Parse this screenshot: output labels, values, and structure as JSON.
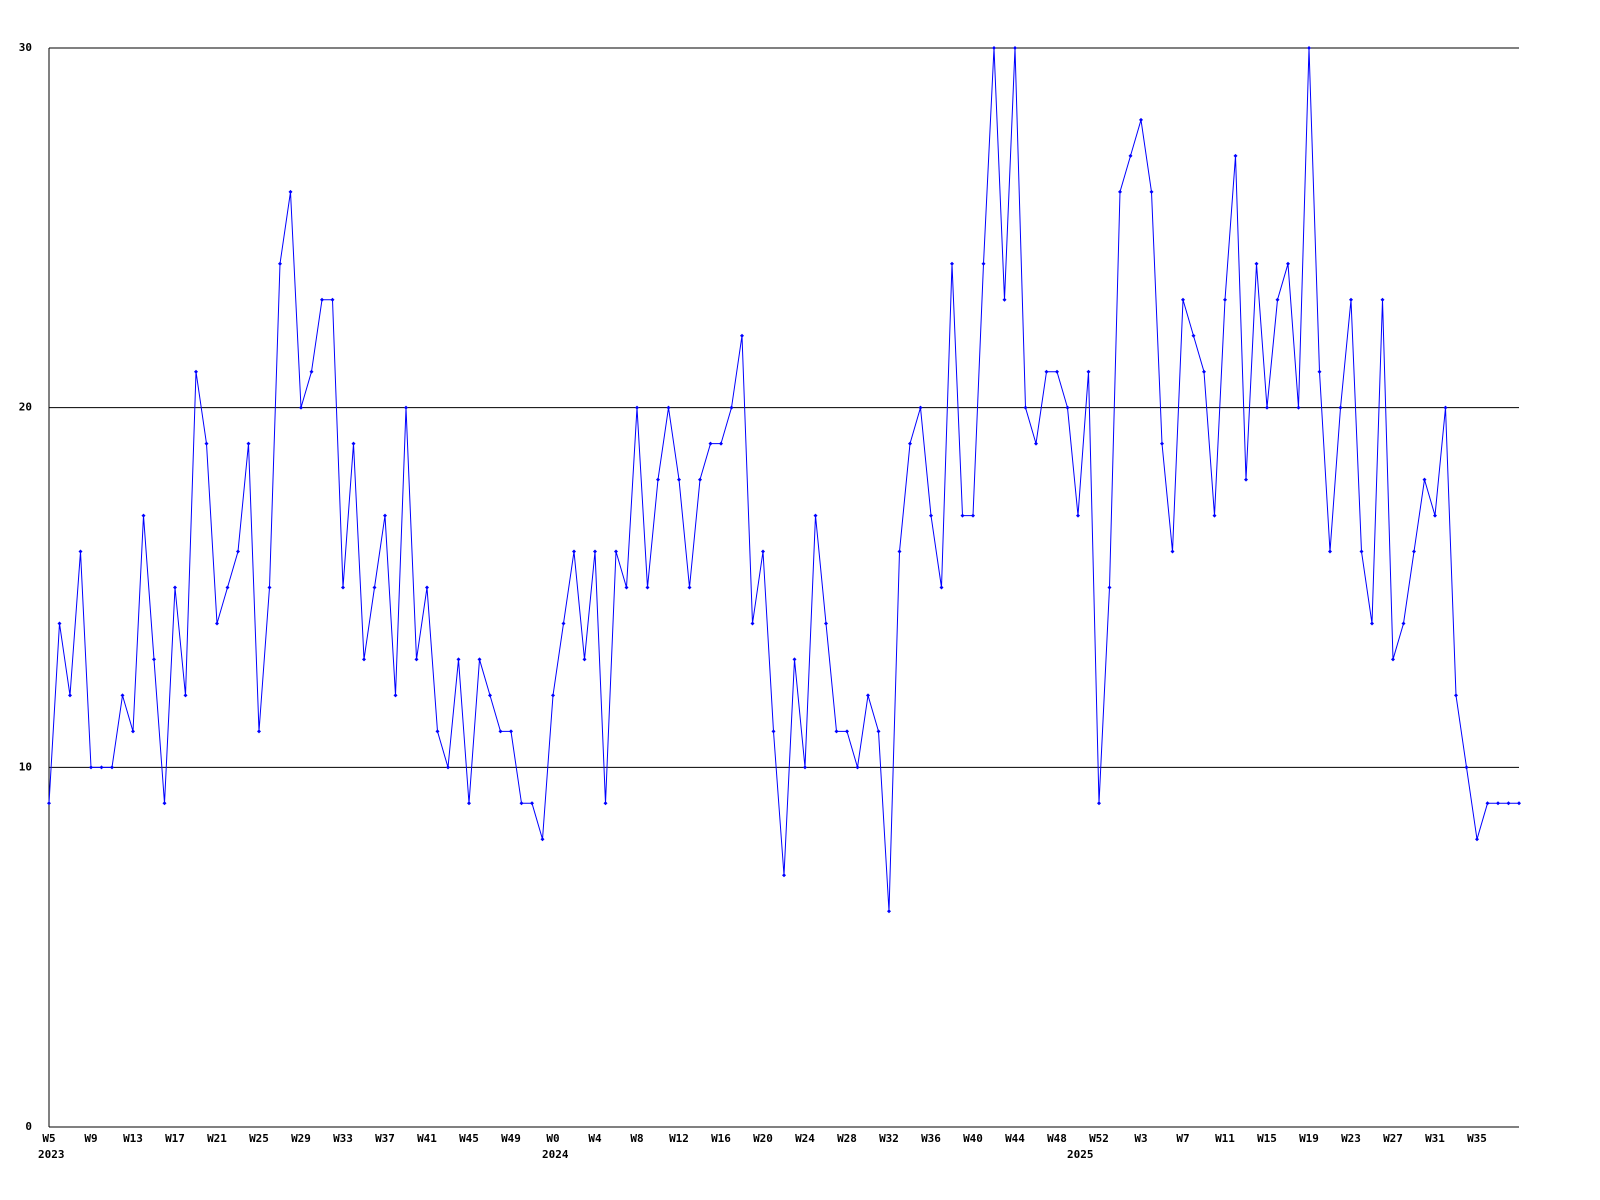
{
  "chart_data": {
    "type": "line",
    "color": "#0000ff",
    "grid": true,
    "ylim": [
      0,
      30
    ],
    "yticks": [
      0,
      10,
      20,
      30
    ],
    "categories": [
      "W5",
      null,
      null,
      null,
      "W9",
      null,
      null,
      null,
      "W13",
      null,
      null,
      null,
      "W17",
      null,
      null,
      null,
      "W21",
      null,
      null,
      null,
      "W25",
      null,
      null,
      null,
      "W29",
      null,
      null,
      null,
      "W33",
      null,
      null,
      null,
      "W37",
      null,
      null,
      null,
      "W41",
      null,
      null,
      null,
      "W45",
      null,
      null,
      null,
      "W49",
      null,
      null,
      null,
      "W0",
      null,
      null,
      null,
      "W4",
      null,
      null,
      null,
      "W8",
      null,
      null,
      null,
      "W12",
      null,
      null,
      null,
      "W16",
      null,
      null,
      null,
      "W20",
      null,
      null,
      null,
      "W24",
      null,
      null,
      null,
      "W28",
      null,
      null,
      null,
      "W32",
      null,
      null,
      null,
      "W36",
      null,
      null,
      null,
      "W40",
      null,
      null,
      null,
      "W44",
      null,
      null,
      null,
      "W48",
      null,
      null,
      null,
      "W52",
      null,
      null,
      null,
      "W3",
      null,
      null,
      null,
      "W7",
      null,
      null,
      null,
      "W11",
      null,
      null,
      null,
      "W15",
      null,
      null,
      null,
      "W19",
      null,
      null,
      null,
      "W23",
      null,
      null,
      null,
      "W27",
      null,
      null,
      null,
      "W31",
      null,
      null,
      null,
      "W35",
      null,
      null,
      null,
      null
    ],
    "year_labels": [
      "2023",
      null,
      null,
      null,
      null,
      null,
      null,
      null,
      null,
      null,
      null,
      null,
      null,
      null,
      null,
      null,
      null,
      null,
      null,
      null,
      null,
      null,
      null,
      null,
      null,
      null,
      null,
      null,
      null,
      null,
      null,
      null,
      null,
      null,
      null,
      null,
      null,
      null,
      null,
      null,
      null,
      null,
      null,
      null,
      null,
      null,
      null,
      null,
      "2024",
      null,
      null,
      null,
      null,
      null,
      null,
      null,
      null,
      null,
      null,
      null,
      null,
      null,
      null,
      null,
      null,
      null,
      null,
      null,
      null,
      null,
      null,
      null,
      null,
      null,
      null,
      null,
      null,
      null,
      null,
      null,
      null,
      null,
      null,
      null,
      null,
      null,
      null,
      null,
      null,
      null,
      null,
      null,
      null,
      null,
      null,
      null,
      null,
      null,
      "2025",
      null,
      null,
      null,
      null,
      null,
      null,
      null,
      null,
      null,
      null,
      null,
      null,
      null,
      null,
      null,
      null,
      null,
      null,
      null,
      null,
      null,
      null,
      null,
      null,
      null,
      null,
      null,
      null,
      null,
      null,
      null,
      null,
      null,
      null,
      null,
      null,
      null,
      null,
      null,
      null
    ],
    "values": [
      9,
      14,
      12,
      16,
      10,
      10,
      10,
      12,
      11,
      17,
      13,
      9,
      15,
      12,
      21,
      19,
      14,
      15,
      16,
      19,
      11,
      15,
      24,
      26,
      20,
      21,
      23,
      23,
      15,
      19,
      13,
      15,
      17,
      12,
      20,
      13,
      15,
      11,
      10,
      13,
      9,
      13,
      12,
      11,
      11,
      9,
      9,
      8,
      12,
      14,
      16,
      13,
      16,
      9,
      16,
      15,
      20,
      15,
      18,
      20,
      18,
      15,
      18,
      19,
      19,
      20,
      22,
      14,
      16,
      11,
      7,
      13,
      10,
      17,
      14,
      11,
      11,
      10,
      12,
      11,
      6,
      16,
      19,
      20,
      17,
      15,
      24,
      17,
      17,
      24,
      30,
      23,
      30,
      20,
      19,
      21,
      21,
      20,
      17,
      21,
      9,
      15,
      26,
      27,
      28,
      26,
      19,
      16,
      23,
      22,
      21,
      17,
      23,
      27,
      18,
      24,
      20,
      23,
      24,
      20,
      30,
      21,
      16,
      20,
      23,
      16,
      14,
      23,
      13,
      14,
      16,
      18,
      17,
      20,
      12,
      10,
      8,
      9,
      9,
      9,
      9
    ]
  }
}
